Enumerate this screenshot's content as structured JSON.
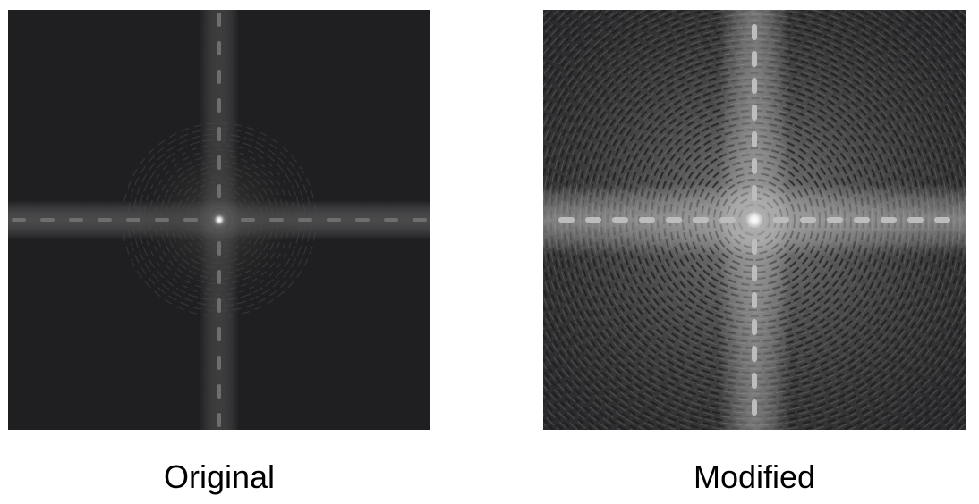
{
  "panels": [
    {
      "id": "original",
      "caption": "Original",
      "background": "#1f1f21"
    },
    {
      "id": "modified",
      "caption": "Modified",
      "background": "#2b2b2d"
    }
  ]
}
